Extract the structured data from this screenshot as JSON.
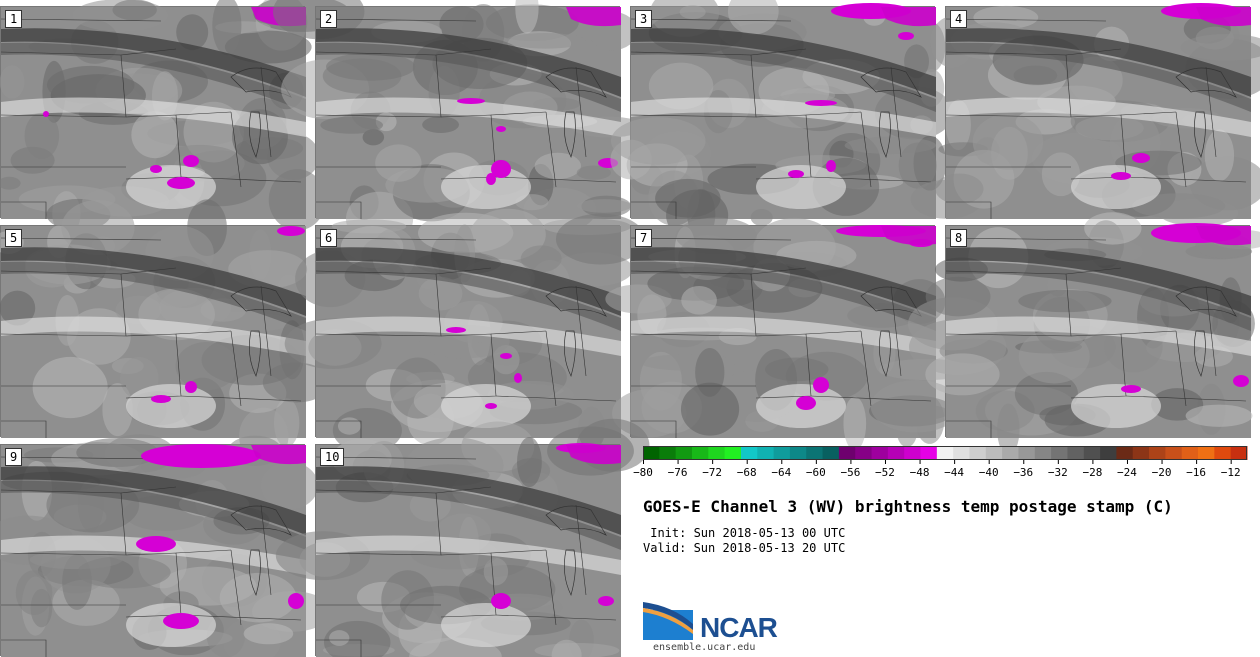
{
  "title": "GOES-E Channel 3 (WV) brightness temp postage stamp (C)",
  "init": " Init: Sun 2018-05-13 00 UTC",
  "valid": "Valid: Sun 2018-05-13 20 UTC",
  "logo": {
    "name": "NCAR",
    "url": "ensemble.ucar.edu"
  },
  "panels": [
    {
      "label": "1"
    },
    {
      "label": "2"
    },
    {
      "label": "3"
    },
    {
      "label": "4"
    },
    {
      "label": "5"
    },
    {
      "label": "6"
    },
    {
      "label": "7"
    },
    {
      "label": "8"
    },
    {
      "label": "9"
    },
    {
      "label": "10"
    }
  ],
  "colorbar": {
    "ticks": [
      "−80",
      "−76",
      "−72",
      "−68",
      "−64",
      "−60",
      "−56",
      "−52",
      "−48",
      "−44",
      "−40",
      "−36",
      "−32",
      "−28",
      "−24",
      "−20",
      "−16",
      "−12"
    ],
    "colors": [
      "#006400",
      "#0a7d0a",
      "#119a11",
      "#18b818",
      "#1fd61f",
      "#22f022",
      "#12c8c8",
      "#10b2b2",
      "#0f9c9c",
      "#0d8888",
      "#0b7474",
      "#086060",
      "#6e006e",
      "#860086",
      "#9e009e",
      "#b600b6",
      "#ce00ce",
      "#e600e6",
      "#f2f2f2",
      "#e0e0e0",
      "#cecece",
      "#bcbcbc",
      "#aaaaaa",
      "#989898",
      "#868686",
      "#747474",
      "#626262",
      "#505050",
      "#3e3e3e",
      "#6b2a16",
      "#8c3517",
      "#ad4318",
      "#c8501a",
      "#e06018",
      "#f07014",
      "#e04a0e",
      "#c83010"
    ]
  }
}
